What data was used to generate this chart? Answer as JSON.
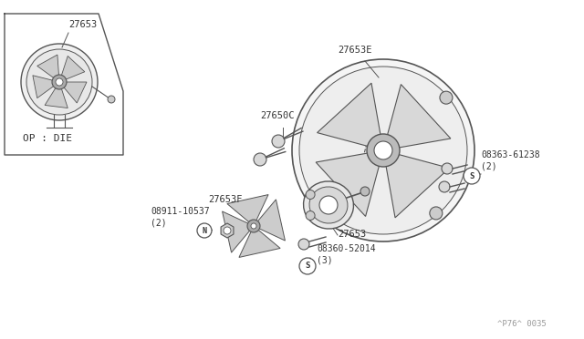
{
  "bg_color": "#ffffff",
  "line_color": "#555555",
  "text_color": "#333333",
  "fig_width": 6.4,
  "fig_height": 3.72,
  "dpi": 100,
  "watermark": "^P76^ 0035",
  "labels": {
    "label_27650C": "27650C",
    "label_27653E": "27653E",
    "label_08363": "08363-61238\n(2)",
    "label_27653F": "27653F",
    "label_08911": "08911-10537\n(2)",
    "label_27653_main": "27653",
    "label_08360": "08360-52014\n(3)",
    "op_die": "OP : DIE",
    "inset_label": "27653"
  }
}
